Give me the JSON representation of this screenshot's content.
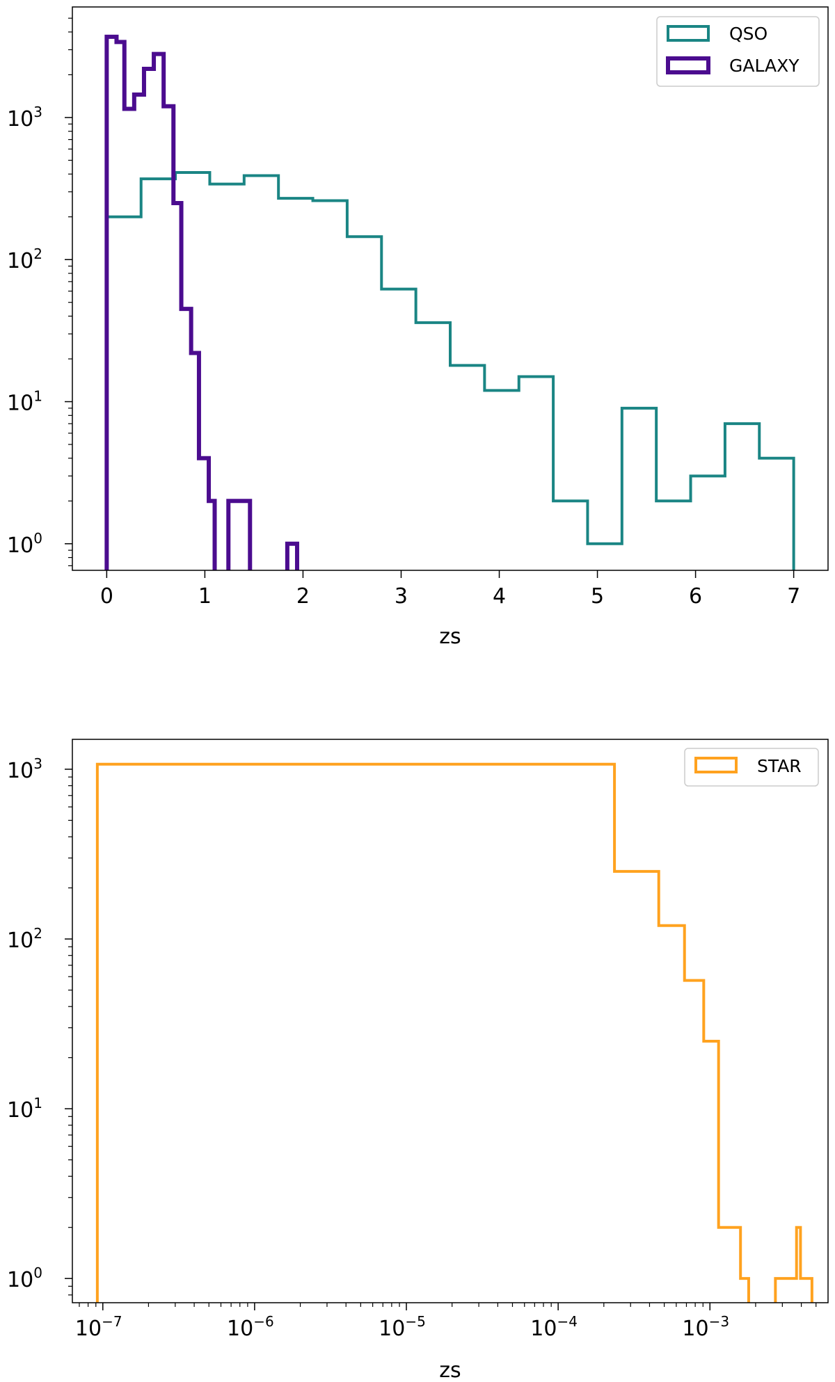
{
  "chart_data": [
    {
      "type": "histogram",
      "title": "",
      "xlabel": "zs",
      "ylabel": "",
      "xscale": "linear",
      "yscale": "log",
      "xlim": [
        -0.35,
        7.35
      ],
      "ylim": [
        0.65,
        6000
      ],
      "xticks": [
        0,
        1,
        2,
        3,
        4,
        5,
        6,
        7
      ],
      "xtick_labels": [
        "0",
        "1",
        "2",
        "3",
        "4",
        "5",
        "6",
        "7"
      ],
      "yticks": [
        1,
        10,
        100,
        1000
      ],
      "ytick_labels": [
        {
          "base": "10",
          "exp": "0"
        },
        {
          "base": "10",
          "exp": "1"
        },
        {
          "base": "10",
          "exp": "2"
        },
        {
          "base": "10",
          "exp": "3"
        }
      ],
      "grid": false,
      "legend_position": "top-right",
      "series": [
        {
          "name": "QSO",
          "color": "#1a8584",
          "stroke_width": 4,
          "edges": [
            0,
            0.35,
            0.7,
            1.05,
            1.4,
            1.75,
            2.1,
            2.45,
            2.8,
            3.15,
            3.5,
            3.85,
            4.2,
            4.55,
            4.9,
            5.25,
            5.6,
            5.95,
            6.3,
            6.65,
            7.0
          ],
          "counts": [
            200,
            370,
            410,
            340,
            390,
            270,
            260,
            145,
            62,
            36,
            18,
            12,
            15,
            2,
            1,
            9,
            2,
            3,
            7,
            4
          ]
        },
        {
          "name": "GALAXY",
          "color": "#4b0c8f",
          "stroke_width": 6,
          "edges": [
            0,
            0.1,
            0.18,
            0.28,
            0.38,
            0.48,
            0.58,
            0.68,
            0.76,
            0.86,
            0.94,
            1.04,
            1.1,
            1.18,
            1.24,
            1.28,
            1.46,
            1.84,
            1.94
          ],
          "counts": [
            3700,
            3400,
            1150,
            1450,
            2200,
            2800,
            1200,
            250,
            45,
            22,
            4,
            2,
            0,
            0,
            2,
            2,
            0,
            1
          ]
        }
      ]
    },
    {
      "type": "histogram",
      "title": "",
      "xlabel": "zs",
      "ylabel": "",
      "xscale": "log",
      "yscale": "log",
      "xlim": [
        6.3e-08,
        0.006
      ],
      "ylim": [
        0.72,
        1500
      ],
      "xticks": [
        1e-07,
        1e-06,
        1e-05,
        0.0001,
        0.001
      ],
      "xtick_labels": [
        {
          "base": "10",
          "exp": "−7"
        },
        {
          "base": "10",
          "exp": "−6"
        },
        {
          "base": "10",
          "exp": "−5"
        },
        {
          "base": "10",
          "exp": "−4"
        },
        {
          "base": "10",
          "exp": "−3"
        }
      ],
      "yticks": [
        1,
        10,
        100,
        1000
      ],
      "ytick_labels": [
        {
          "base": "10",
          "exp": "0"
        },
        {
          "base": "10",
          "exp": "1"
        },
        {
          "base": "10",
          "exp": "2"
        },
        {
          "base": "10",
          "exp": "3"
        }
      ],
      "grid": false,
      "legend_position": "top-right",
      "series": [
        {
          "name": "STAR",
          "color": "#ffa21f",
          "stroke_width": 4,
          "edges": [
            9.2e-08,
            0.000235,
            0.00046,
            0.00068,
            0.00091,
            0.00114,
            0.00137,
            0.00159,
            0.0018,
            0.0027,
            0.00338,
            0.00372,
            0.00385,
            0.00395,
            0.0041,
            0.0047
          ],
          "counts": [
            1070,
            250,
            120,
            57,
            25,
            2,
            2,
            1,
            0,
            1,
            1,
            2,
            2,
            1,
            1
          ]
        }
      ]
    }
  ]
}
